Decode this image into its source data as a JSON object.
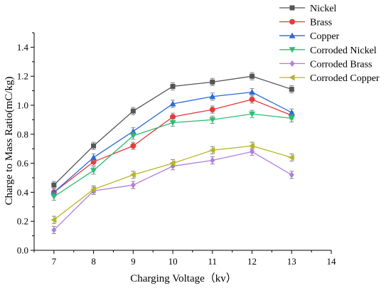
{
  "chart_data": {
    "type": "line",
    "title": "",
    "xlabel": "Charging Voltage（kv）",
    "ylabel": "Charge to Mass Ratio(mC/kg)",
    "xlim": [
      6.5,
      14
    ],
    "ylim": [
      0.0,
      1.5
    ],
    "x_ticks": [
      7,
      8,
      9,
      10,
      11,
      12,
      13,
      14
    ],
    "y_ticks": [
      0.0,
      0.2,
      0.4,
      0.6,
      0.8,
      1.0,
      1.2,
      1.4
    ],
    "x_tick_labels": [
      "7",
      "8",
      "9",
      "10",
      "11",
      "12",
      "13",
      "14"
    ],
    "y_tick_labels": [
      "0.0",
      "0.2",
      "0.4",
      "0.6",
      "0.8",
      "1.0",
      "1.2",
      "1.4"
    ],
    "x": [
      7,
      8,
      9,
      10,
      11,
      12,
      13
    ],
    "legend_position": "top-right outside",
    "series": [
      {
        "name": "Nickel",
        "color": "#555555",
        "marker": "square",
        "values": [
          0.45,
          0.72,
          0.96,
          1.13,
          1.16,
          1.2,
          1.11
        ]
      },
      {
        "name": "Brass",
        "color": "#e83b3b",
        "marker": "circle",
        "values": [
          0.4,
          0.61,
          0.72,
          0.92,
          0.97,
          1.04,
          0.93
        ]
      },
      {
        "name": "Copper",
        "color": "#2a6ad6",
        "marker": "triangle-up",
        "values": [
          0.4,
          0.64,
          0.82,
          1.01,
          1.06,
          1.09,
          0.95
        ]
      },
      {
        "name": "Corroded Nickel",
        "color": "#2ebd72",
        "marker": "triangle-down",
        "values": [
          0.37,
          0.55,
          0.79,
          0.88,
          0.9,
          0.94,
          0.91
        ]
      },
      {
        "name": "Corroded Brass",
        "color": "#b07ee0",
        "marker": "diamond",
        "values": [
          0.14,
          0.41,
          0.45,
          0.58,
          0.62,
          0.68,
          0.52
        ]
      },
      {
        "name": "Corroded Copper",
        "color": "#b8b51e",
        "marker": "triangle-left",
        "values": [
          0.21,
          0.42,
          0.52,
          0.6,
          0.69,
          0.72,
          0.64
        ]
      }
    ],
    "error_bar": 0.025
  }
}
